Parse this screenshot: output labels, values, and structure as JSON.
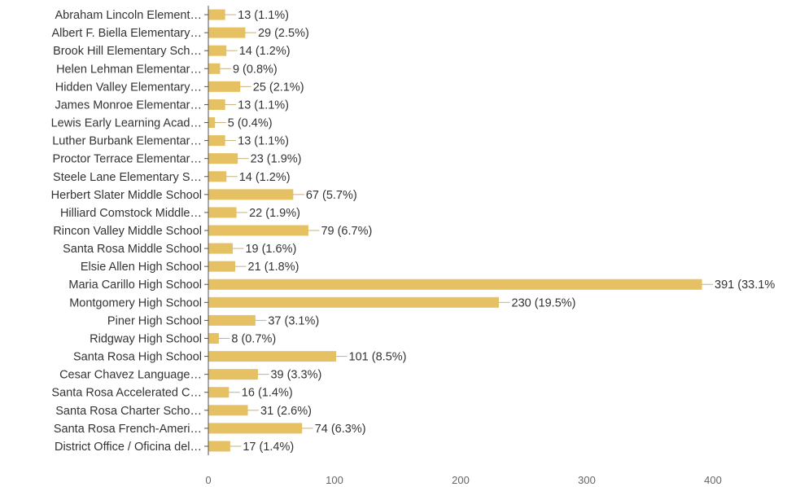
{
  "chart_data": {
    "type": "bar",
    "orientation": "horizontal",
    "categories": [
      "Abraham Lincoln Element…",
      "Albert F. Biella Elementary…",
      "Brook Hill Elementary Sch…",
      "Helen Lehman Elementar…",
      "Hidden Valley Elementary…",
      "James Monroe Elementar…",
      "Lewis Early Learning Acad…",
      "Luther Burbank Elementar…",
      "Proctor Terrace Elementar…",
      "Steele Lane Elementary S…",
      "Herbert Slater Middle School",
      "Hilliard Comstock Middle…",
      "Rincon Valley Middle School",
      "Santa Rosa Middle School",
      "Elsie Allen High School",
      "Maria Carillo High School",
      "Montgomery High School",
      "Piner High School",
      "Ridgway High School",
      "Santa Rosa High School",
      "Cesar Chavez Language…",
      "Santa Rosa Accelerated C…",
      "Santa Rosa Charter Scho…",
      "Santa Rosa French-Ameri…",
      "District Office / Oficina del…"
    ],
    "values": [
      13,
      29,
      14,
      9,
      25,
      13,
      5,
      13,
      23,
      14,
      67,
      22,
      79,
      19,
      21,
      391,
      230,
      37,
      8,
      101,
      39,
      16,
      31,
      74,
      17
    ],
    "data_labels": [
      "13 (1.1%)",
      "29 (2.5%)",
      "14 (1.2%)",
      "9 (0.8%)",
      "25 (2.1%)",
      "13 (1.1%)",
      "5 (0.4%)",
      "13 (1.1%)",
      "23 (1.9%)",
      "14 (1.2%)",
      "67 (5.7%)",
      "22 (1.9%)",
      "79 (6.7%)",
      "19 (1.6%)",
      "21 (1.8%)",
      "391 (33.1%",
      "230 (19.5%)",
      "37 (3.1%)",
      "8 (0.7%)",
      "101 (8.5%)",
      "39 (3.3%)",
      "16 (1.4%)",
      "31 (2.6%)",
      "74 (6.3%)",
      "17 (1.4%)"
    ],
    "xticks": [
      "0",
      "100",
      "200",
      "300",
      "400"
    ],
    "xlim": [
      0,
      400
    ],
    "title": "",
    "xlabel": "",
    "ylabel": "",
    "grid": false,
    "legend": "none",
    "bar_color": "#e6c163",
    "leader_color": "#c9b27a",
    "axis_color": "#555555"
  }
}
